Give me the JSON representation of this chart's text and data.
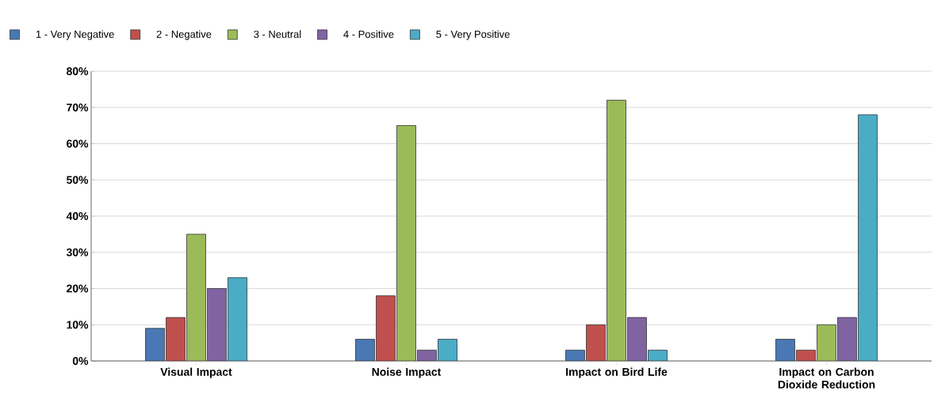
{
  "chart_data": {
    "type": "bar",
    "categories": [
      "Visual Impact",
      "Noise Impact",
      "Impact on Bird Life",
      "Impact on Carbon Dioxide Reduction"
    ],
    "series": [
      {
        "name": "1 - Very Negative",
        "color": "#4a78b4",
        "values": [
          9,
          6,
          3,
          6
        ]
      },
      {
        "name": "2 - Negative",
        "color": "#c0504d",
        "values": [
          12,
          18,
          10,
          3
        ]
      },
      {
        "name": "3 - Neutral",
        "color": "#9bbb59",
        "values": [
          35,
          65,
          72,
          10
        ]
      },
      {
        "name": "4 - Positive",
        "color": "#8064a2",
        "values": [
          20,
          3,
          12,
          12
        ]
      },
      {
        "name": "5 - Very Positive",
        "color": "#4bacc6",
        "values": [
          23,
          6,
          3,
          68
        ]
      }
    ],
    "ylim": [
      0,
      80
    ],
    "yticks": [
      {
        "value": 0,
        "label": "0%"
      },
      {
        "value": 10,
        "label": "10%"
      },
      {
        "value": 20,
        "label": "20%"
      },
      {
        "value": 30,
        "label": "30%"
      },
      {
        "value": 40,
        "label": "40%"
      },
      {
        "value": 50,
        "label": "50%"
      },
      {
        "value": 60,
        "label": "60%"
      },
      {
        "value": 70,
        "label": "70%"
      },
      {
        "value": 80,
        "label": "80%"
      }
    ],
    "grid": "y",
    "legend": "top"
  }
}
